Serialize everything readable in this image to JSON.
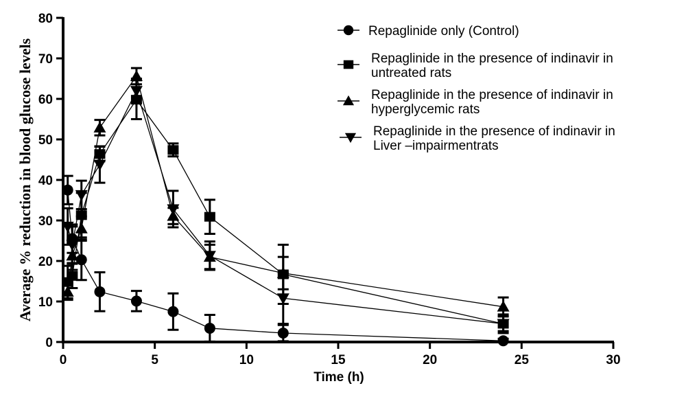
{
  "chart_data": {
    "type": "line",
    "title": "",
    "xlabel": "Time (h)",
    "ylabel": "Average % reduction in blood glucose levels",
    "xlim": [
      0,
      30
    ],
    "ylim": [
      0,
      80
    ],
    "xticks": [
      0,
      5,
      10,
      15,
      20,
      25,
      30
    ],
    "yticks": [
      0,
      10,
      20,
      30,
      40,
      50,
      60,
      70,
      80
    ],
    "grid": false,
    "legend_position": "top-right",
    "x": [
      0.25,
      0.5,
      1,
      2,
      4,
      6,
      8,
      12,
      24
    ],
    "series": [
      {
        "name": "Repaglinide only (Control)",
        "legend_lines": [
          "Repaglinide only (Control)"
        ],
        "marker": "circle",
        "values": [
          37.5,
          25.5,
          20.3,
          12.4,
          10.1,
          7.5,
          3.4,
          2.2,
          0.3
        ],
        "errors": [
          3.5,
          3.5,
          5.0,
          4.8,
          2.5,
          4.5,
          3.3,
          2.0,
          0.5
        ]
      },
      {
        "name": "Repaglinide in the presence of indinavir in untreated rats",
        "legend_lines": [
          "Repaglinide in the presence of indinavir in",
          "untreated rats"
        ],
        "marker": "square",
        "values": [
          14.8,
          16.3,
          31.3,
          46.4,
          59.8,
          47.4,
          30.9,
          16.7,
          4.5
        ],
        "errors": [
          4.0,
          3.0,
          5.5,
          1.8,
          4.8,
          1.6,
          4.2,
          7.3,
          2.3
        ]
      },
      {
        "name": "Repaglinide in the presence of indinavir in hyperglycemic rats",
        "legend_lines": [
          "Repaglinide in the presence of indinavir in",
          "hyperglycemic rats"
        ],
        "marker": "triangle-up",
        "values": [
          12.4,
          21.3,
          28.0,
          52.9,
          65.6,
          31.1,
          21.0,
          17.0,
          8.7
        ],
        "errors": [
          2.0,
          3.5,
          3.0,
          1.9,
          2.0,
          2.0,
          3.0,
          4.0,
          2.3
        ]
      },
      {
        "name": "Repaglinide in the presence of indinavir in Liver -impairmentrats",
        "legend_lines": [
          "Repaglinide in the presence of indinavir in",
          "Liver –impairmentrats"
        ],
        "marker": "triangle-down",
        "values": [
          28.5,
          24.0,
          36.3,
          43.8,
          62.0,
          32.8,
          21.3,
          10.8,
          4.5
        ],
        "errors": [
          4.5,
          4.5,
          3.5,
          4.5,
          3.0,
          4.5,
          3.5,
          6.3,
          1.8
        ]
      }
    ]
  }
}
